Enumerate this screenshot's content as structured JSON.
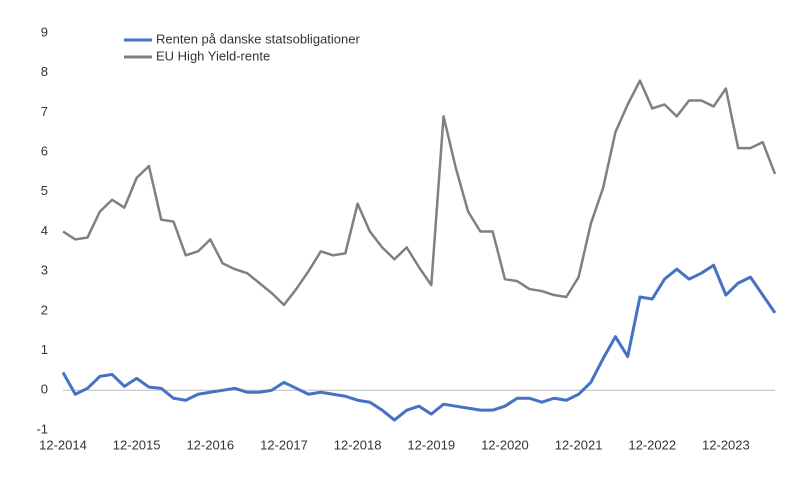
{
  "chart_data": {
    "type": "line",
    "categories": [
      "12-2014",
      null,
      null,
      null,
      null,
      null,
      "12-2015",
      null,
      null,
      null,
      null,
      null,
      "12-2016",
      null,
      null,
      null,
      null,
      null,
      "12-2017",
      null,
      null,
      null,
      null,
      null,
      "12-2018",
      null,
      null,
      null,
      null,
      null,
      "12-2019",
      null,
      null,
      null,
      null,
      null,
      "12-2020",
      null,
      null,
      null,
      null,
      null,
      "12-2021",
      null,
      null,
      null,
      null,
      null,
      "12-2022",
      null,
      null,
      null,
      null,
      null,
      "12-2023",
      null,
      null,
      null,
      null
    ],
    "series": [
      {
        "name": "Renten på danske statsobligationer",
        "color": "#4472c4",
        "values": [
          0.45,
          -0.1,
          0.05,
          0.35,
          0.4,
          0.1,
          0.3,
          0.08,
          0.05,
          -0.2,
          -0.25,
          -0.1,
          -0.05,
          0.0,
          0.05,
          -0.05,
          -0.05,
          0.0,
          0.2,
          0.05,
          -0.1,
          -0.05,
          -0.1,
          -0.15,
          -0.25,
          -0.3,
          -0.5,
          -0.75,
          -0.5,
          -0.4,
          -0.6,
          -0.35,
          -0.4,
          -0.45,
          -0.5,
          -0.5,
          -0.4,
          -0.2,
          -0.2,
          -0.3,
          -0.2,
          -0.25,
          -0.1,
          0.2,
          0.8,
          1.35,
          0.85,
          2.35,
          2.3,
          2.8,
          3.05,
          2.8,
          2.95,
          3.15,
          2.4,
          2.7,
          2.85,
          2.4,
          1.95
        ]
      },
      {
        "name": "EU High Yield-rente",
        "color": "#808080",
        "values": [
          4.0,
          3.8,
          3.85,
          4.5,
          4.8,
          4.6,
          5.35,
          5.65,
          4.3,
          4.25,
          3.4,
          3.5,
          3.8,
          3.2,
          3.05,
          2.95,
          2.7,
          2.45,
          2.15,
          2.55,
          3.0,
          3.5,
          3.4,
          3.45,
          4.7,
          4.0,
          3.6,
          3.3,
          3.6,
          3.1,
          2.65,
          6.9,
          5.6,
          4.5,
          4.0,
          4.0,
          2.8,
          2.75,
          2.55,
          2.5,
          2.4,
          2.35,
          2.85,
          4.2,
          5.1,
          6.5,
          7.2,
          7.8,
          7.1,
          7.2,
          6.9,
          7.3,
          7.3,
          7.15,
          7.6,
          6.1,
          6.1,
          6.25,
          5.45
        ]
      }
    ],
    "ylim": [
      -1,
      9
    ],
    "yticks": [
      -1,
      0,
      1,
      2,
      3,
      4,
      5,
      6,
      7,
      8,
      9
    ],
    "grid": false,
    "legend": "upper left"
  }
}
